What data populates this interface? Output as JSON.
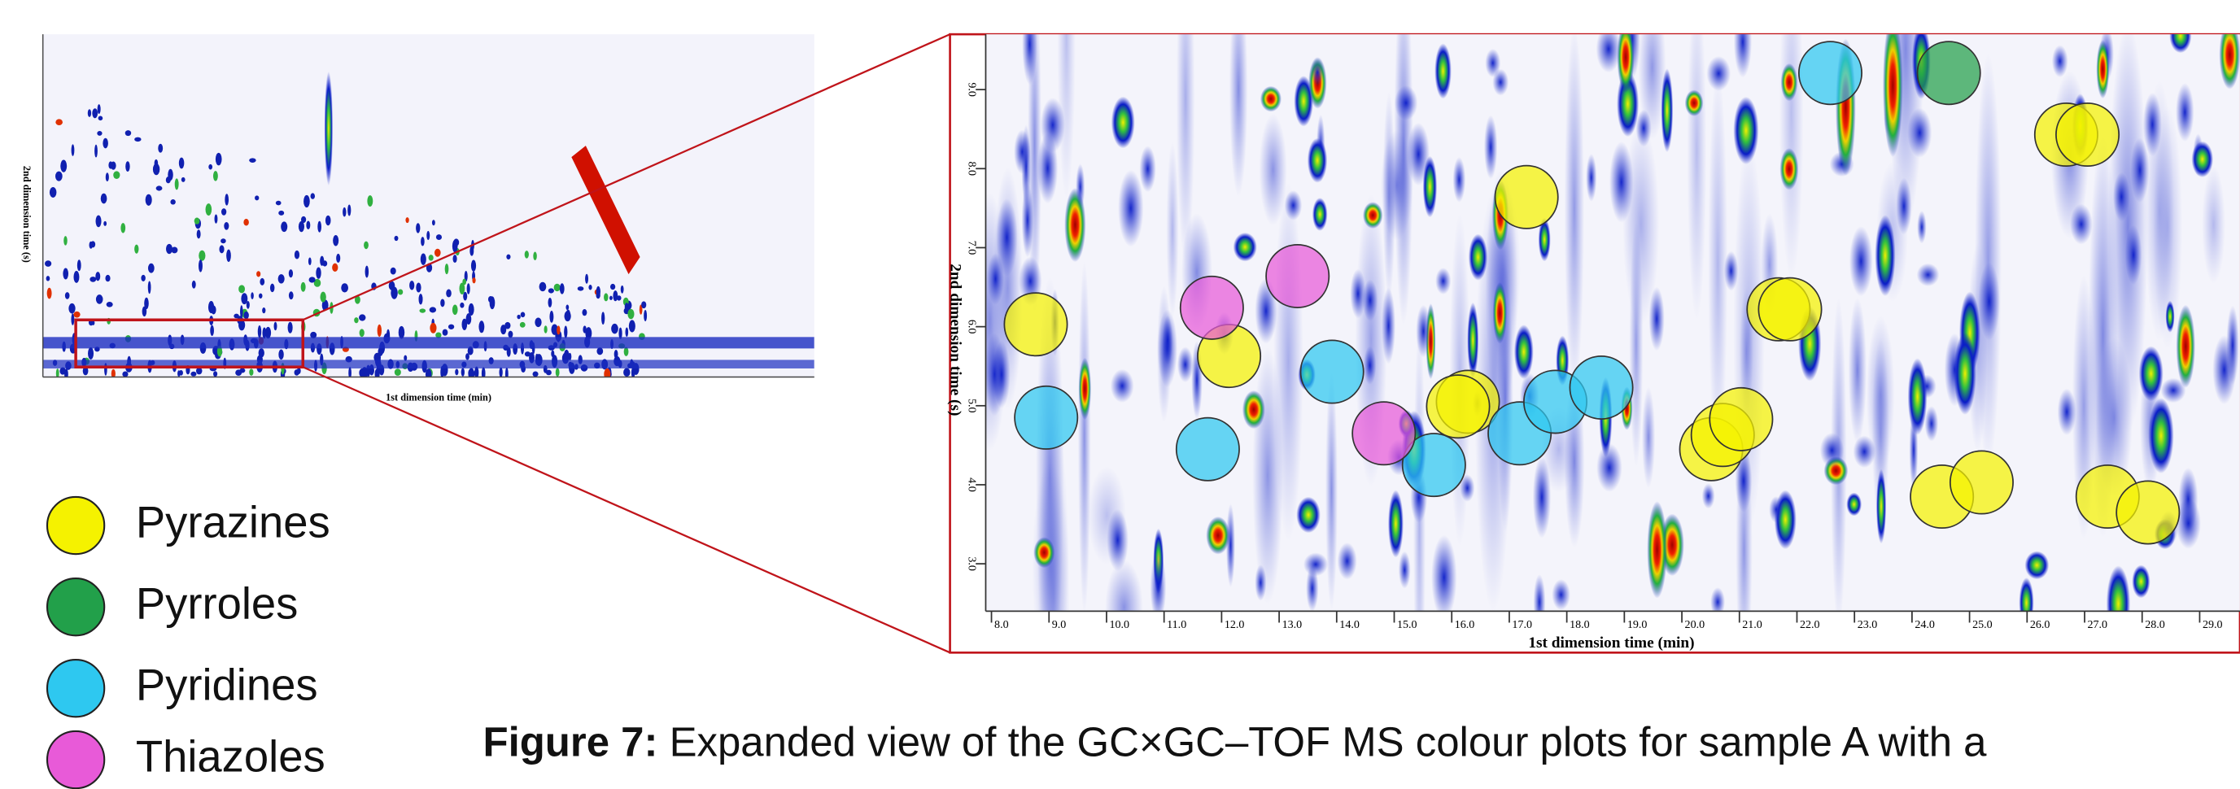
{
  "chart_data": {
    "type": "scatter",
    "x_label": "1st dimension time (min)",
    "y_label": "2nd dimension time (s)",
    "xlim": [
      7.9,
      29.7
    ],
    "ylim": [
      2.4,
      9.7
    ],
    "xticks": [
      {
        "value": 8,
        "label": "8.0"
      },
      {
        "value": 9,
        "label": "9.0"
      },
      {
        "value": 10,
        "label": "10.0"
      },
      {
        "value": 11,
        "label": "11.0"
      },
      {
        "value": 12,
        "label": "12.0"
      },
      {
        "value": 13,
        "label": "13.0"
      },
      {
        "value": 14,
        "label": "14.0"
      },
      {
        "value": 15,
        "label": "15.0"
      },
      {
        "value": 16,
        "label": "16.0"
      },
      {
        "value": 17,
        "label": "17.0"
      },
      {
        "value": 18,
        "label": "18.0"
      },
      {
        "value": 19,
        "label": "19.0"
      },
      {
        "value": 20,
        "label": "20.0"
      },
      {
        "value": 21,
        "label": "21.0"
      },
      {
        "value": 22,
        "label": "22.0"
      },
      {
        "value": 23,
        "label": "23.0"
      },
      {
        "value": 24,
        "label": "24.0"
      },
      {
        "value": 25,
        "label": "25.0"
      },
      {
        "value": 26,
        "label": "26.0"
      },
      {
        "value": 27,
        "label": "27.0"
      },
      {
        "value": 28,
        "label": "28.0"
      },
      {
        "value": 29,
        "label": "29.0"
      }
    ],
    "yticks": [
      {
        "value": 3,
        "label": "3.0"
      },
      {
        "value": 4,
        "label": "4.0"
      },
      {
        "value": 5,
        "label": "5.0"
      },
      {
        "value": 6,
        "label": "6.0"
      },
      {
        "value": 7,
        "label": "7.0"
      },
      {
        "value": 8,
        "label": "8.0"
      },
      {
        "value": 9,
        "label": "9.0"
      }
    ],
    "series": [
      {
        "name": "Pyrazines",
        "color": "#f5f200",
        "x": [
          8.77,
          12.13,
          17.3,
          16.28,
          16.11,
          21.68,
          21.88,
          20.51,
          20.71,
          21.03,
          26.68,
          27.05,
          24.52,
          25.21,
          27.4,
          28.1
        ],
        "values": [
          6.03,
          5.63,
          7.64,
          5.05,
          4.99,
          6.22,
          6.22,
          4.45,
          4.63,
          4.83,
          8.43,
          8.43,
          3.85,
          4.03,
          3.85,
          3.65
        ]
      },
      {
        "name": "Pyrroles",
        "color": "#22a04a",
        "x": [
          24.64
        ],
        "values": [
          9.21
        ]
      },
      {
        "name": "Pyridines",
        "color": "#2ec8f0",
        "x": [
          8.95,
          11.76,
          13.92,
          15.69,
          17.18,
          17.8,
          18.6,
          22.58
        ],
        "values": [
          4.85,
          4.45,
          5.43,
          4.25,
          4.65,
          5.05,
          5.23,
          9.21
        ]
      },
      {
        "name": "Thiazoles",
        "color": "#e85ad8",
        "x": [
          11.83,
          13.32,
          14.82
        ],
        "values": [
          6.24,
          6.64,
          4.65
        ]
      }
    ]
  },
  "overview": {
    "x_label": "1st dimension time (min)",
    "y_label": "2nd dimension time (s)"
  },
  "caption": {
    "label": "Figure 7:",
    "text": " Expanded view of the GC×GC–TOF MS colour plots for sample A with a"
  }
}
